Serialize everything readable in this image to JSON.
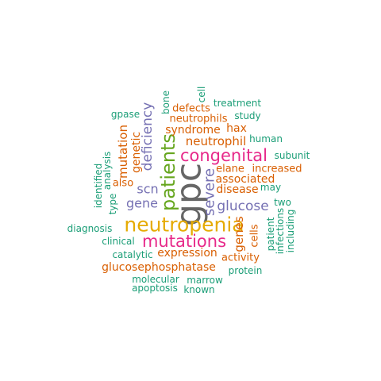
{
  "palette": {
    "teal": "#1b9e77",
    "orange": "#d95f02",
    "purple": "#7570b3",
    "magenta": "#e7298a",
    "green": "#66a61e",
    "gold": "#e6ab02",
    "gray": "#666666"
  },
  "words": [
    {
      "text": "gpc",
      "color": "gray"
    },
    {
      "text": "neutropenia",
      "color": "gold"
    },
    {
      "text": "patients",
      "color": "green"
    },
    {
      "text": "congenital",
      "color": "magenta"
    },
    {
      "text": "mutations",
      "color": "magenta"
    },
    {
      "text": "severe",
      "color": "purple"
    },
    {
      "text": "glucose",
      "color": "purple"
    },
    {
      "text": "gene",
      "color": "purple"
    },
    {
      "text": "scn",
      "color": "purple"
    },
    {
      "text": "deficiency",
      "color": "purple"
    },
    {
      "text": "neutrophil",
      "color": "orange"
    },
    {
      "text": "expression",
      "color": "orange"
    },
    {
      "text": "genes",
      "color": "orange"
    },
    {
      "text": "mutation",
      "color": "orange"
    },
    {
      "text": "glucosephosphatase",
      "color": "orange"
    },
    {
      "text": "associated",
      "color": "orange"
    },
    {
      "text": "disease",
      "color": "orange"
    },
    {
      "text": "increased",
      "color": "orange"
    },
    {
      "text": "elane",
      "color": "orange"
    },
    {
      "text": "hax",
      "color": "orange"
    },
    {
      "text": "syndrome",
      "color": "orange"
    },
    {
      "text": "neutrophils",
      "color": "orange"
    },
    {
      "text": "genetic",
      "color": "orange"
    },
    {
      "text": "also",
      "color": "orange"
    },
    {
      "text": "activity",
      "color": "orange"
    },
    {
      "text": "cells",
      "color": "orange"
    },
    {
      "text": "defects",
      "color": "orange"
    },
    {
      "text": "bone",
      "color": "teal"
    },
    {
      "text": "cell",
      "color": "teal"
    },
    {
      "text": "treatment",
      "color": "teal"
    },
    {
      "text": "study",
      "color": "teal"
    },
    {
      "text": "gpase",
      "color": "teal"
    },
    {
      "text": "human",
      "color": "teal"
    },
    {
      "text": "subunit",
      "color": "teal"
    },
    {
      "text": "identified",
      "color": "teal"
    },
    {
      "text": "analysis",
      "color": "teal"
    },
    {
      "text": "type",
      "color": "teal"
    },
    {
      "text": "may",
      "color": "teal"
    },
    {
      "text": "two",
      "color": "teal"
    },
    {
      "text": "diagnosis",
      "color": "teal"
    },
    {
      "text": "clinical",
      "color": "teal"
    },
    {
      "text": "catalytic",
      "color": "teal"
    },
    {
      "text": "patient",
      "color": "teal"
    },
    {
      "text": "infections",
      "color": "teal"
    },
    {
      "text": "including",
      "color": "teal"
    },
    {
      "text": "protein",
      "color": "teal"
    },
    {
      "text": "molecular",
      "color": "teal"
    },
    {
      "text": "marrow",
      "color": "teal"
    },
    {
      "text": "apoptosis",
      "color": "teal"
    },
    {
      "text": "known",
      "color": "teal"
    }
  ]
}
